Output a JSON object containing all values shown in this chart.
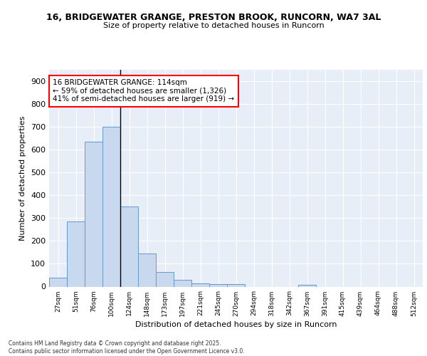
{
  "title1": "16, BRIDGEWATER GRANGE, PRESTON BROOK, RUNCORN, WA7 3AL",
  "title2": "Size of property relative to detached houses in Runcorn",
  "xlabel": "Distribution of detached houses by size in Runcorn",
  "ylabel": "Number of detached properties",
  "annotation_line1": "16 BRIDGEWATER GRANGE: 114sqm",
  "annotation_line2": "← 59% of detached houses are smaller (1,326)",
  "annotation_line3": "41% of semi-detached houses are larger (919) →",
  "bar_edges": [
    27,
    51,
    76,
    100,
    124,
    148,
    173,
    197,
    221,
    245,
    270,
    294,
    318,
    342,
    367,
    391,
    415,
    439,
    464,
    488,
    512
  ],
  "bar_heights": [
    40,
    285,
    635,
    700,
    350,
    145,
    65,
    30,
    15,
    10,
    10,
    0,
    0,
    0,
    8,
    0,
    0,
    0,
    0,
    0,
    0
  ],
  "bar_color": "#c8d8ee",
  "bar_edge_color": "#6699cc",
  "property_line_x": 3.5,
  "ylim": [
    0,
    950
  ],
  "yticks": [
    0,
    100,
    200,
    300,
    400,
    500,
    600,
    700,
    800,
    900
  ],
  "background_color": "#e8eef8",
  "grid_color": "#ffffff",
  "footer_line1": "Contains HM Land Registry data © Crown copyright and database right 2025.",
  "footer_line2": "Contains public sector information licensed under the Open Government Licence v3.0."
}
